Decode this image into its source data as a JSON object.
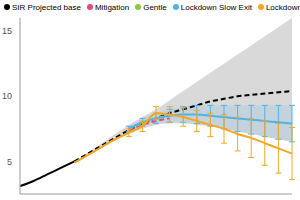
{
  "chart_data": {
    "type": "line",
    "x": [
      0,
      1,
      2,
      3,
      4,
      5,
      6,
      7,
      8,
      9,
      10,
      11,
      12,
      13,
      14,
      15,
      16,
      17,
      18,
      19,
      20
    ],
    "xlim": [
      0,
      20
    ],
    "ylim": [
      2.5,
      16
    ],
    "yticks": [
      5,
      10,
      15
    ],
    "grid": false,
    "legend": "top",
    "tick_labels": "y",
    "series": [
      {
        "color": "#000000",
        "line_style": "solid",
        "values": [
          3.1,
          3.5,
          4.0,
          4.5,
          5.0,
          null,
          null,
          null,
          null,
          null,
          null,
          null,
          null,
          null,
          null,
          null,
          null,
          null,
          null,
          null,
          null
        ]
      },
      {
        "name": "SIR Projected base",
        "color": "#000000",
        "line_style": "dashed",
        "values": [
          null,
          null,
          null,
          null,
          5.0,
          5.6,
          6.2,
          6.8,
          7.4,
          7.9,
          8.3,
          8.7,
          9.0,
          9.3,
          9.6,
          9.8,
          10.0,
          10.1,
          10.2,
          10.3,
          10.4
        ],
        "lower": [
          null,
          null,
          null,
          null,
          5.0,
          5.5,
          6.1,
          6.6,
          7.1,
          7.5,
          7.8,
          7.9,
          7.9,
          7.8,
          7.7,
          7.5,
          7.3,
          7.1,
          6.9,
          6.7,
          6.5
        ],
        "upper": [
          null,
          null,
          null,
          null,
          5.0,
          5.7,
          6.4,
          7.1,
          7.8,
          8.4,
          9.0,
          9.7,
          10.4,
          11.1,
          11.8,
          12.5,
          13.2,
          13.9,
          14.6,
          15.3,
          16.0
        ]
      },
      {
        "name": "Mitigation",
        "color": "#e8467c",
        "line_style": "dashed",
        "values": [
          null,
          null,
          null,
          null,
          null,
          null,
          null,
          null,
          7.4,
          7.8,
          8.1,
          8.3,
          null,
          null,
          null,
          null,
          null,
          null,
          null,
          null,
          null
        ]
      },
      {
        "name": "Gentle",
        "color": "#8cc63f",
        "line_style": "dashed",
        "values": [
          null,
          null,
          null,
          null,
          null,
          null,
          null,
          null,
          7.5,
          7.9,
          8.3,
          8.6,
          null,
          null,
          null,
          null,
          null,
          null,
          null,
          null,
          null
        ]
      },
      {
        "name": "Lockdown Slow Exit",
        "color": "#4fb3e8",
        "line_style": "solid",
        "values": [
          null,
          null,
          null,
          null,
          null,
          null,
          null,
          null,
          7.5,
          8.0,
          8.3,
          8.5,
          8.6,
          8.6,
          8.5,
          8.4,
          8.3,
          8.2,
          8.1,
          8.0,
          7.9
        ],
        "lower": [
          null,
          null,
          null,
          null,
          null,
          null,
          null,
          null,
          7.3,
          7.7,
          7.9,
          8.0,
          8.0,
          7.9,
          7.7,
          7.5,
          7.3,
          7.1,
          6.9,
          6.7,
          6.5
        ],
        "upper": [
          null,
          null,
          null,
          null,
          null,
          null,
          null,
          null,
          7.7,
          8.3,
          8.7,
          9.0,
          9.2,
          9.3,
          9.3,
          9.3,
          9.3,
          9.3,
          9.3,
          9.3,
          9.3
        ],
        "error": [
          null,
          null,
          null,
          null,
          null,
          null,
          null,
          null,
          0.2,
          0.3,
          0.4,
          0.5,
          0.6,
          0.7,
          0.8,
          0.9,
          1.0,
          1.1,
          1.2,
          1.3,
          1.4
        ]
      },
      {
        "name": "Lockdown Quick Exit",
        "color": "#f5a623",
        "line_style": "solid",
        "values": [
          null,
          null,
          null,
          null,
          4.9,
          5.5,
          6.1,
          6.7,
          7.2,
          7.7,
          8.7,
          8.6,
          8.4,
          8.1,
          7.8,
          7.5,
          7.1,
          6.8,
          6.4,
          6.0,
          5.6
        ],
        "error": [
          null,
          null,
          null,
          null,
          null,
          null,
          null,
          null,
          0.3,
          0.4,
          0.5,
          0.6,
          0.7,
          0.8,
          0.9,
          1.1,
          1.3,
          1.5,
          1.7,
          1.9,
          2.0
        ]
      }
    ]
  }
}
